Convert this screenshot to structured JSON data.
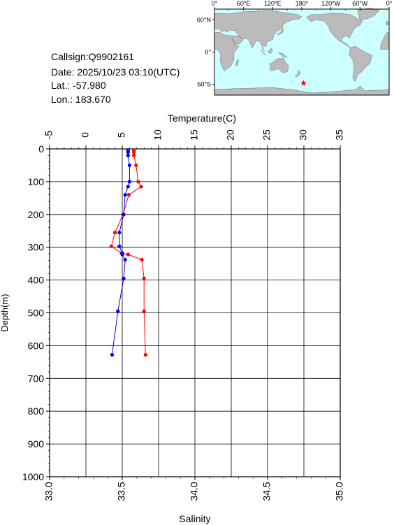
{
  "info": {
    "callsign": "Callsign:Q9902161",
    "date": "Date:  2025/10/23 03:10(UTC)",
    "lat": "Lat.:  -57.980",
    "lon": "Lon.:  183.670"
  },
  "map": {
    "top_labels": [
      "0°",
      "60°E",
      "120°E",
      "180°",
      "120°W",
      "60°W",
      "0°"
    ],
    "lat_labels": [
      "60°N",
      "0°",
      "60°S"
    ],
    "ocean_color": "#ccffff",
    "land_color": "#bbbbbb",
    "marker": {
      "lon": 183.67,
      "lat": -57.98,
      "symbol": "star",
      "color": "#ff0000"
    }
  },
  "chart_data": {
    "type": "line",
    "x_top": {
      "label": "Temperature(C)",
      "range": [
        -5,
        35
      ],
      "ticks": [
        -5,
        0,
        5,
        10,
        15,
        20,
        25,
        30,
        35
      ]
    },
    "x_bottom": {
      "label": "Salinity",
      "range": [
        33.0,
        35.0
      ],
      "ticks": [
        "33.0",
        "33.5",
        "34.0",
        "34.5",
        "35.0"
      ]
    },
    "y": {
      "label": "Depth(m)",
      "range": [
        0,
        1000
      ],
      "inverted": true,
      "ticks": [
        0,
        100,
        200,
        300,
        400,
        500,
        600,
        700,
        800,
        900,
        1000
      ]
    },
    "grid": true,
    "series": [
      {
        "quantity": "temperature",
        "axis": "top",
        "color": "#ff0000",
        "points": [
          {
            "depth": 5,
            "value": 6.6
          },
          {
            "depth": 10,
            "value": 6.6
          },
          {
            "depth": 20,
            "value": 6.6
          },
          {
            "depth": 50,
            "value": 6.9
          },
          {
            "depth": 100,
            "value": 7.2
          },
          {
            "depth": 115,
            "value": 7.6
          },
          {
            "depth": 140,
            "value": 5.9
          },
          {
            "depth": 200,
            "value": 5.1
          },
          {
            "depth": 255,
            "value": 4.0
          },
          {
            "depth": 297,
            "value": 3.5
          },
          {
            "depth": 318,
            "value": 4.9
          },
          {
            "depth": 322,
            "value": 5.8
          },
          {
            "depth": 338,
            "value": 7.7
          },
          {
            "depth": 395,
            "value": 8.0
          },
          {
            "depth": 495,
            "value": 8.0
          },
          {
            "depth": 628,
            "value": 8.2
          }
        ]
      },
      {
        "quantity": "salinity",
        "axis": "bottom",
        "color": "#0000ff",
        "points": [
          {
            "depth": 5,
            "value": 33.54
          },
          {
            "depth": 10,
            "value": 33.54
          },
          {
            "depth": 20,
            "value": 33.54
          },
          {
            "depth": 50,
            "value": 33.55
          },
          {
            "depth": 100,
            "value": 33.55
          },
          {
            "depth": 115,
            "value": 33.54
          },
          {
            "depth": 140,
            "value": 33.52
          },
          {
            "depth": 200,
            "value": 33.51
          },
          {
            "depth": 255,
            "value": 33.48
          },
          {
            "depth": 297,
            "value": 33.48
          },
          {
            "depth": 318,
            "value": 33.5
          },
          {
            "depth": 322,
            "value": 33.5
          },
          {
            "depth": 338,
            "value": 33.52
          },
          {
            "depth": 395,
            "value": 33.51
          },
          {
            "depth": 495,
            "value": 33.47
          },
          {
            "depth": 628,
            "value": 33.43
          }
        ]
      }
    ]
  }
}
